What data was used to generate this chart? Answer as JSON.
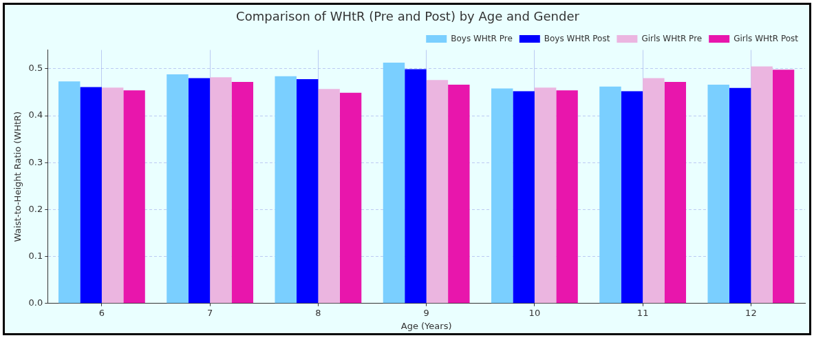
{
  "chart_data": {
    "type": "bar",
    "title": "Comparison of WHtR (Pre and Post) by Age and Gender",
    "xlabel": "Age (Years)",
    "ylabel": "Waist-to-Height Ratio (WHtR)",
    "categories": [
      "6",
      "7",
      "8",
      "9",
      "10",
      "11",
      "12"
    ],
    "series": [
      {
        "name": "Boys WHtR Pre",
        "color": "#7acfff",
        "values": [
          0.473,
          0.488,
          0.484,
          0.513,
          0.458,
          0.462,
          0.466
        ]
      },
      {
        "name": "Boys WHtR Post",
        "color": "#0000ff",
        "values": [
          0.461,
          0.48,
          0.478,
          0.499,
          0.452,
          0.452,
          0.459
        ]
      },
      {
        "name": "Girls WHtR Pre",
        "color": "#ebb5e0",
        "values": [
          0.46,
          0.482,
          0.457,
          0.476,
          0.46,
          0.48,
          0.505
        ]
      },
      {
        "name": "Girls WHtR Post",
        "color": "#e816ac",
        "values": [
          0.454,
          0.472,
          0.449,
          0.466,
          0.454,
          0.472,
          0.498
        ]
      }
    ],
    "ylim": [
      0,
      0.54
    ],
    "yticks": [
      {
        "value": 0,
        "label": "0.0"
      },
      0.1,
      0.2,
      0.3,
      0.4,
      0.5
    ],
    "grid": true,
    "legend": "top right"
  }
}
